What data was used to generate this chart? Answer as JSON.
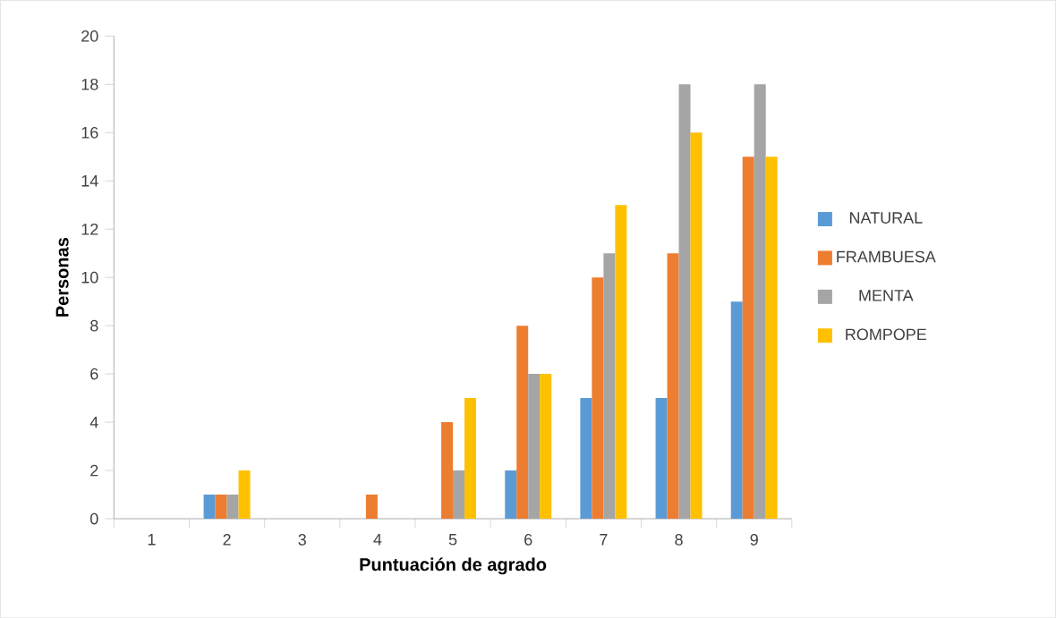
{
  "chart_data": {
    "type": "bar",
    "xlabel": "Puntuación de agrado",
    "ylabel": "Personas",
    "categories": [
      "1",
      "2",
      "3",
      "4",
      "5",
      "6",
      "7",
      "8",
      "9"
    ],
    "series": [
      {
        "name": "NATURAL",
        "color": "#5b9bd5",
        "values": [
          0,
          1,
          0,
          0,
          0,
          2,
          5,
          5,
          9
        ]
      },
      {
        "name": "FRAMBUESA",
        "color": "#ed7d31",
        "values": [
          0,
          1,
          0,
          1,
          4,
          8,
          10,
          11,
          15
        ]
      },
      {
        "name": "MENTA",
        "color": "#a5a5a5",
        "values": [
          0,
          1,
          0,
          0,
          2,
          6,
          11,
          18,
          18
        ]
      },
      {
        "name": "ROMPOPE",
        "color": "#ffc000",
        "values": [
          0,
          2,
          0,
          0,
          5,
          6,
          13,
          16,
          15
        ]
      }
    ],
    "ylim": [
      0,
      20
    ],
    "yticks": [
      0,
      2,
      4,
      6,
      8,
      10,
      12,
      14,
      16,
      18,
      20
    ],
    "grid": false,
    "legend": "right"
  }
}
